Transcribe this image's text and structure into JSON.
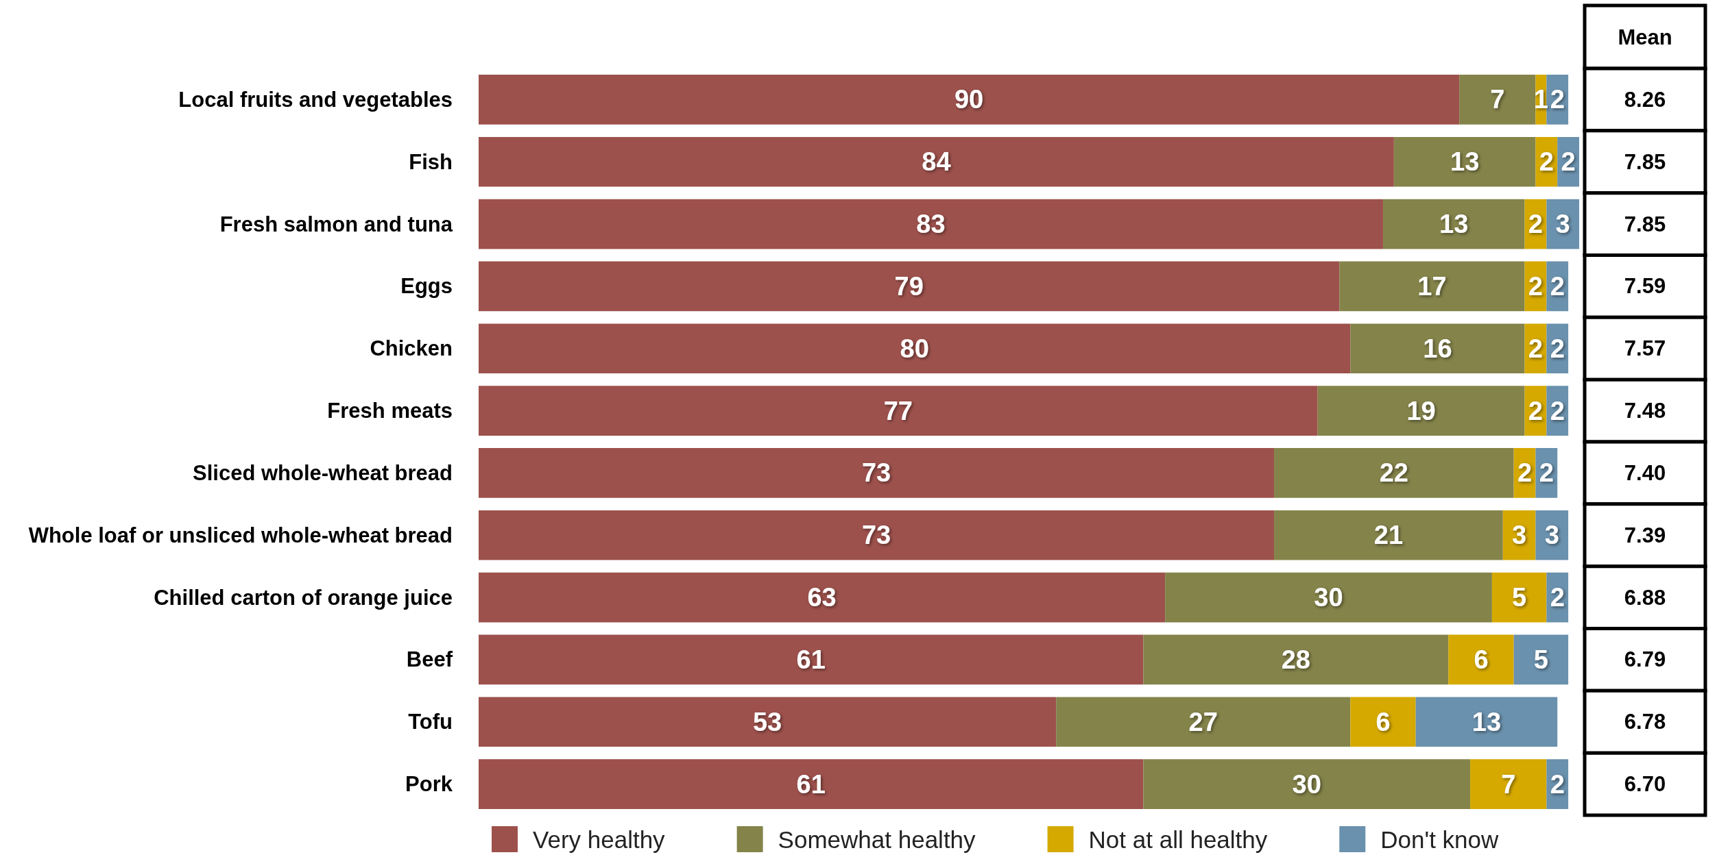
{
  "chart_data": {
    "type": "bar",
    "orientation": "horizontal",
    "stacked": true,
    "data_labels": true,
    "legend": "bottom",
    "categories": [
      "Local fruits and vegetables",
      "Fish",
      "Fresh salmon and tuna",
      "Eggs",
      "Chicken",
      "Fresh meats",
      "Sliced whole-wheat bread",
      "Whole loaf or unsliced whole-wheat bread",
      "Chilled carton of orange juice",
      "Beef",
      "Tofu",
      "Pork"
    ],
    "series": [
      {
        "name": "Very healthy",
        "color": "#9d514c",
        "values": [
          90,
          84,
          83,
          79,
          80,
          77,
          73,
          73,
          63,
          61,
          53,
          61
        ]
      },
      {
        "name": "Somewhat healthy",
        "color": "#84834a",
        "values": [
          7,
          13,
          13,
          17,
          16,
          19,
          22,
          21,
          30,
          28,
          27,
          30
        ]
      },
      {
        "name": "Not at all healthy",
        "color": "#d5a900",
        "values": [
          1,
          2,
          2,
          2,
          2,
          2,
          2,
          3,
          5,
          6,
          6,
          7
        ]
      },
      {
        "name": "Don't know",
        "color": "#6a91ad",
        "values": [
          2,
          2,
          3,
          2,
          2,
          2,
          2,
          3,
          2,
          5,
          13,
          2
        ]
      }
    ],
    "annotations": [
      "Mean",
      "8.26",
      "7.85",
      "7.85",
      "7.59",
      "7.57",
      "7.48",
      "7.40",
      "7.39",
      "6.88",
      "6.79",
      "6.78",
      "6.70"
    ]
  }
}
